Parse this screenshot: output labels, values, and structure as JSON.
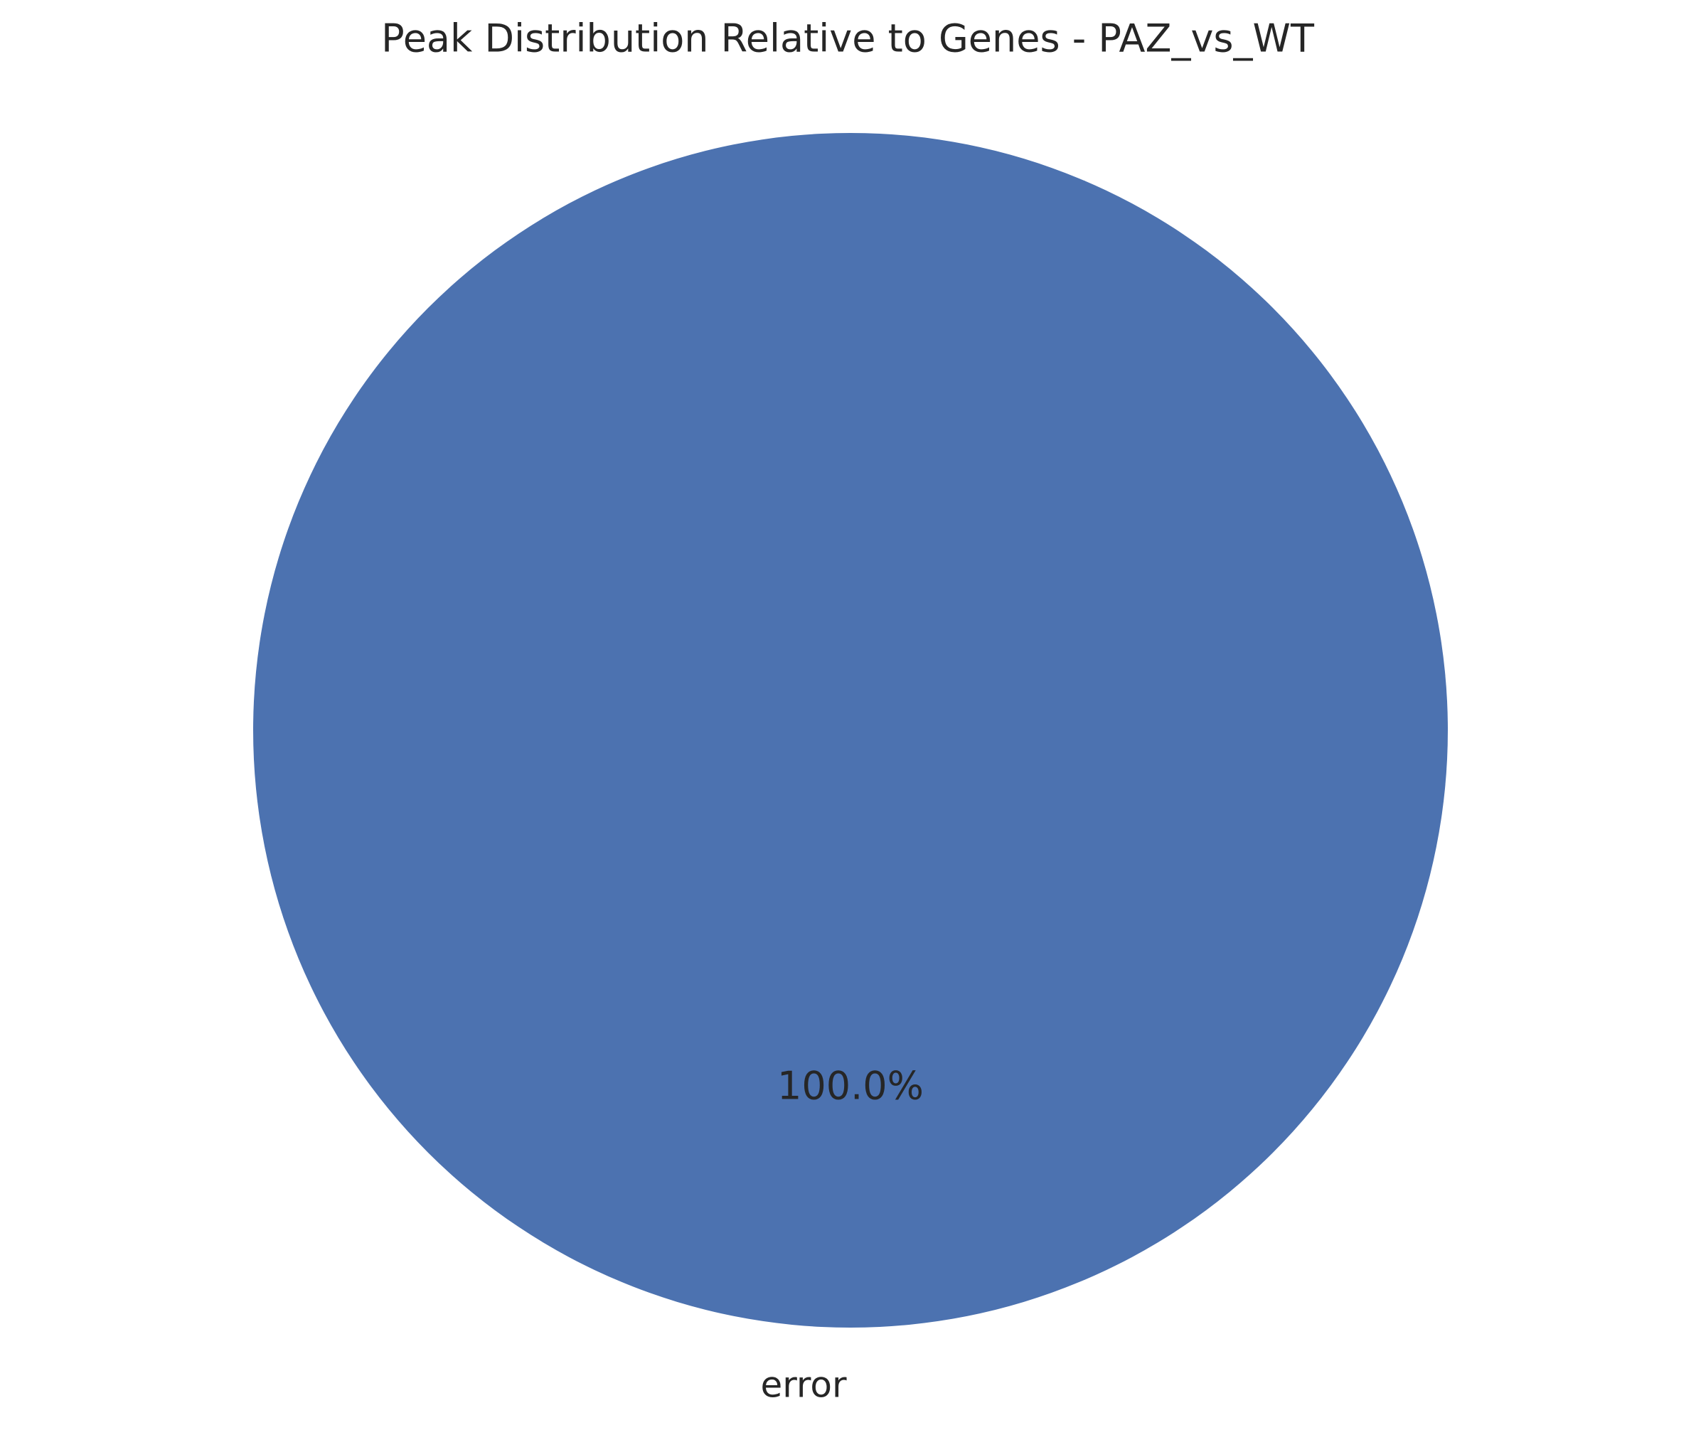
{
  "chart_data": {
    "type": "pie",
    "title": "Peak Distribution Relative to Genes - PAZ_vs_WT",
    "slices": [
      {
        "label": "error",
        "value": 100.0,
        "pct_label": "100.0%",
        "color": "#4c72b0"
      }
    ],
    "text_color": "#262626",
    "pct_color": "#262626"
  }
}
